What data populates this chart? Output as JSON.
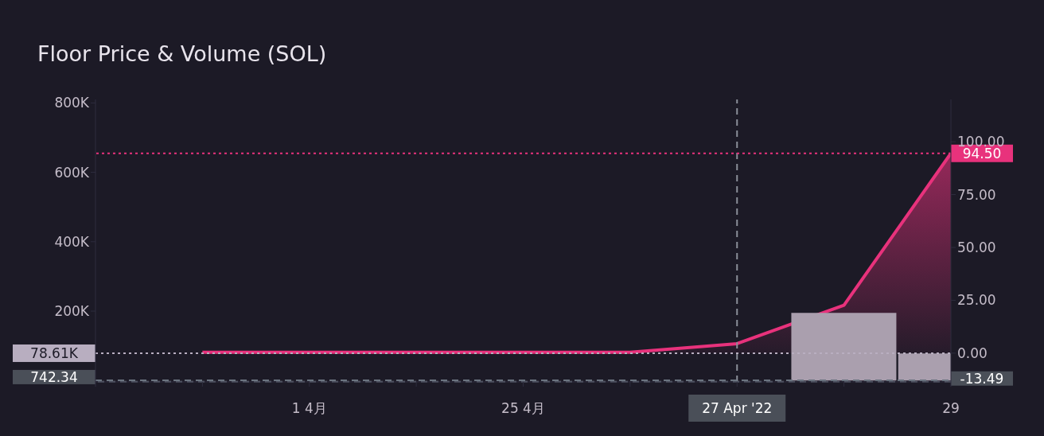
{
  "chart_data": {
    "type": "area",
    "title": "Floor Price & Volume (SOL)",
    "categories": [
      null,
      null,
      "1 4月",
      null,
      "25 4月",
      null,
      "27 Apr '22",
      null,
      "29"
    ],
    "series": [
      {
        "type": "bar",
        "color": "#aa9fae",
        "values": [
          null,
          null,
          null,
          null,
          null,
          null,
          null,
          195000,
          78000
        ]
      },
      {
        "axis": "y2",
        "color": "#e8327c",
        "values": [
          null,
          0.4,
          null,
          null,
          null,
          0.4,
          4.5,
          22.7,
          94.5
        ]
      }
    ],
    "ylim": [
      -4000,
      810000
    ],
    "yticks": [
      {
        "value": 200000,
        "label": "200K"
      },
      {
        "value": 400000,
        "label": "400K"
      },
      {
        "value": 600000,
        "label": "600K"
      },
      {
        "value": 800000,
        "label": "800K"
      }
    ],
    "y2lim": [
      -13.6,
      120
    ],
    "y2ticks": [
      {
        "value": 0,
        "label": "0.00"
      },
      {
        "value": 25,
        "label": "25.00"
      },
      {
        "value": 50,
        "label": "50.00"
      },
      {
        "value": 75,
        "label": "75.00"
      },
      {
        "value": 100,
        "label": "100.00"
      }
    ],
    "ref_lines": [
      {
        "axis": "x",
        "value": "27 Apr '22",
        "color": "#8a8f99",
        "line_style": "dashed"
      },
      {
        "axis": "y",
        "value": 78610,
        "label": "78.61K",
        "color": "#b8aec0",
        "line_style": "dotted"
      },
      {
        "axis": "y",
        "value": 742.34,
        "label": "742.34",
        "color": "#6b7480",
        "line_style": "dashed"
      },
      {
        "axis": "y2",
        "value": -13.49,
        "label": "-13.49",
        "color": "#6b7480",
        "line_style": "dashed"
      },
      {
        "axis": "y2",
        "value": 94.5,
        "label": "94.50",
        "color": "#e8327c",
        "line_style": "dotted"
      }
    ],
    "grid": false,
    "legend": false
  }
}
